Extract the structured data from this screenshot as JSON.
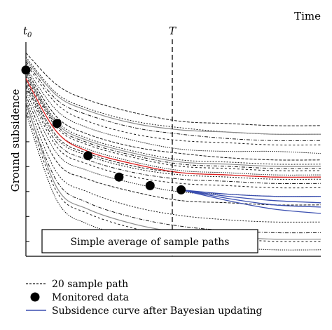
{
  "chart_data": {
    "type": "line",
    "x_axis_label": "Time",
    "y_axis_label": "Ground subsidence",
    "x_start_label": "t",
    "x_start_subscript": "0",
    "vertical_line_label": "T",
    "x_range": [
      0,
      1.9
    ],
    "y_range": [
      0,
      1.0
    ],
    "y_inverted": true,
    "vertical_line_x": 1.0,
    "sample_x": [
      0,
      0.2,
      0.4,
      0.7,
      1.0,
      1.3,
      1.6,
      1.9
    ],
    "sample_paths": [
      [
        0.05,
        0.2,
        0.27,
        0.33,
        0.37,
        0.38,
        0.39,
        0.39
      ],
      [
        0.07,
        0.24,
        0.31,
        0.37,
        0.4,
        0.42,
        0.43,
        0.43
      ],
      [
        0.09,
        0.27,
        0.34,
        0.4,
        0.43,
        0.45,
        0.46,
        0.46
      ],
      [
        0.1,
        0.29,
        0.37,
        0.43,
        0.46,
        0.47,
        0.48,
        0.48
      ],
      [
        0.12,
        0.32,
        0.4,
        0.46,
        0.5,
        0.51,
        0.51,
        0.52
      ],
      [
        0.13,
        0.35,
        0.43,
        0.49,
        0.52,
        0.54,
        0.55,
        0.55
      ],
      [
        0.14,
        0.37,
        0.45,
        0.51,
        0.55,
        0.56,
        0.57,
        0.57
      ],
      [
        0.15,
        0.39,
        0.47,
        0.53,
        0.57,
        0.58,
        0.59,
        0.59
      ],
      [
        0.16,
        0.4,
        0.48,
        0.54,
        0.58,
        0.59,
        0.6,
        0.6
      ],
      [
        0.17,
        0.42,
        0.5,
        0.56,
        0.6,
        0.61,
        0.62,
        0.62
      ],
      [
        0.18,
        0.44,
        0.52,
        0.58,
        0.61,
        0.62,
        0.63,
        0.63
      ],
      [
        0.19,
        0.45,
        0.53,
        0.59,
        0.62,
        0.63,
        0.64,
        0.64
      ],
      [
        0.2,
        0.47,
        0.55,
        0.61,
        0.64,
        0.65,
        0.66,
        0.66
      ],
      [
        0.21,
        0.49,
        0.57,
        0.63,
        0.66,
        0.67,
        0.68,
        0.68
      ],
      [
        0.23,
        0.52,
        0.6,
        0.66,
        0.7,
        0.71,
        0.72,
        0.72
      ],
      [
        0.25,
        0.56,
        0.64,
        0.7,
        0.74,
        0.75,
        0.76,
        0.76
      ],
      [
        0.27,
        0.61,
        0.7,
        0.77,
        0.81,
        0.83,
        0.84,
        0.84
      ],
      [
        0.29,
        0.65,
        0.75,
        0.82,
        0.86,
        0.88,
        0.89,
        0.89
      ],
      [
        0.31,
        0.7,
        0.8,
        0.87,
        0.91,
        0.92,
        0.93,
        0.93
      ],
      [
        0.33,
        0.74,
        0.85,
        0.91,
        0.95,
        0.96,
        0.97,
        0.97
      ]
    ],
    "gray_paths": [
      [
        0.08,
        0.25,
        0.32,
        0.38,
        0.41,
        0.42,
        0.43,
        0.43
      ],
      [
        0.15,
        0.38,
        0.46,
        0.52,
        0.56,
        0.57,
        0.58,
        0.58
      ],
      [
        0.28,
        0.68,
        0.78,
        0.85,
        0.89,
        0.91,
        0.92,
        0.92
      ]
    ],
    "average_path": [
      0.17,
      0.42,
      0.51,
      0.57,
      0.61,
      0.62,
      0.63,
      0.63
    ],
    "monitored_data": [
      {
        "x": 0.0,
        "y": 0.13
      },
      {
        "x": 0.2,
        "y": 0.38
      },
      {
        "x": 0.4,
        "y": 0.53
      },
      {
        "x": 0.6,
        "y": 0.63
      },
      {
        "x": 0.8,
        "y": 0.67
      },
      {
        "x": 1.0,
        "y": 0.69
      }
    ],
    "bayesian_x": [
      1.0,
      1.3,
      1.6,
      1.9
    ],
    "bayesian_curves": [
      [
        0.69,
        0.71,
        0.72,
        0.72
      ],
      [
        0.69,
        0.72,
        0.74,
        0.75
      ],
      [
        0.69,
        0.73,
        0.76,
        0.77
      ],
      [
        0.69,
        0.74,
        0.78,
        0.8
      ]
    ],
    "annotation": "Simple average of sample paths",
    "legend": {
      "sample_path": "20 sample path",
      "monitored": "Monitored data",
      "bayesian": "Subsidence curve after Bayesian updating"
    },
    "colors": {
      "sample": "#1a1a1a",
      "gray": "#8c8c8c",
      "average": "#e02020",
      "bayesian": "#3b4fb0",
      "dots": "#000000"
    }
  }
}
